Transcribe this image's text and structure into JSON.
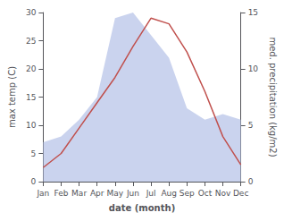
{
  "chart_data": {
    "type": "line",
    "xlabel": "date (month)",
    "ylabel": "max temp (C)",
    "y2label": "med. precipitation (kg/m2)",
    "categories": [
      "Jan",
      "Feb",
      "Mar",
      "Apr",
      "May",
      "Jun",
      "Jul",
      "Aug",
      "Sep",
      "Oct",
      "Nov",
      "Dec"
    ],
    "series": [
      {
        "type": "area",
        "axis": "y2",
        "color": "#b8c4e8",
        "values": [
          3.5,
          4.0,
          5.5,
          7.5,
          14.5,
          15.0,
          13.0,
          11.0,
          6.5,
          5.5,
          6.0,
          5.5
        ]
      },
      {
        "type": "line",
        "color": "#c0504d",
        "values": [
          2.5,
          5.0,
          9.5,
          14.0,
          18.5,
          24.0,
          29.0,
          28.0,
          23.0,
          16.0,
          8.0,
          3.0
        ]
      }
    ],
    "ylim": [
      0,
      30
    ],
    "yticks": [
      0,
      5,
      10,
      15,
      20,
      25,
      30
    ],
    "y2lim": [
      0,
      15
    ],
    "y2ticks": [
      0,
      5,
      10,
      15
    ],
    "grid": false
  }
}
